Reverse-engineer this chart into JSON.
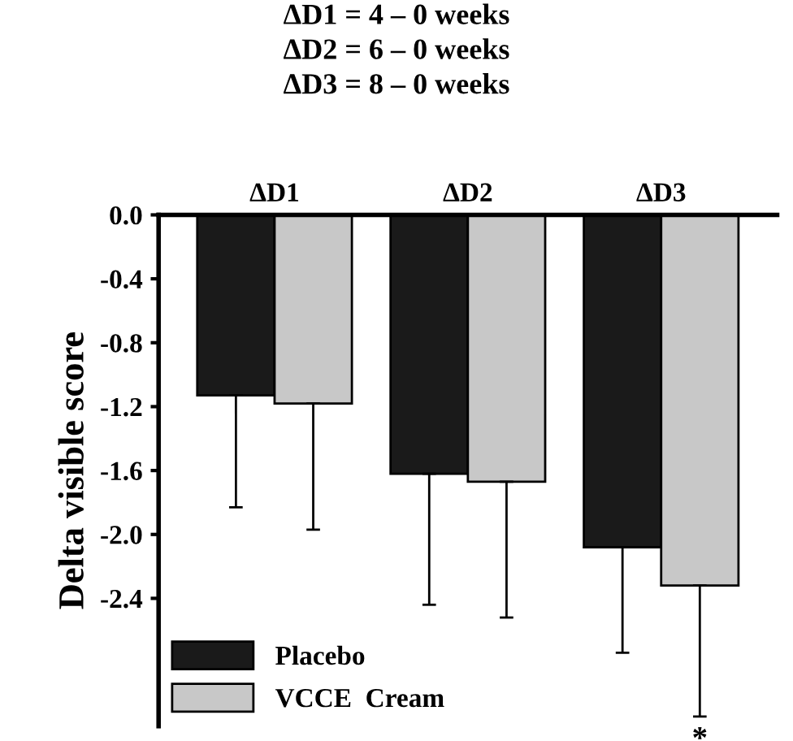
{
  "chart_data": {
    "type": "bar",
    "title": "ΔD1 = 4 – 0 weeks\nΔD2 = 6 – 0 weeks\nΔD3 = 8 – 0 weeks",
    "ylabel": "Delta visible score",
    "categories": [
      "ΔD1",
      "ΔD2",
      "ΔD3"
    ],
    "series": [
      {
        "name": "Placebo",
        "color": "#1a1a1a",
        "values": [
          -1.13,
          -1.62,
          -2.08
        ],
        "errors": [
          [
            -1.83,
            -1.13
          ],
          [
            -2.44,
            -1.62
          ],
          [
            -2.74,
            -2.08
          ]
        ]
      },
      {
        "name": "VCCE  Cream",
        "color": "#c8c8c8",
        "values": [
          -1.18,
          -1.67,
          -2.32
        ],
        "errors": [
          [
            -1.97,
            -1.18
          ],
          [
            -2.52,
            -1.67
          ],
          [
            -3.14,
            -2.32
          ]
        ]
      }
    ],
    "ylim": [
      -3.2,
      0
    ],
    "yticks": [
      {
        "value": 0,
        "label": "0.0"
      },
      -0.4,
      -0.8,
      -1.2,
      -1.6,
      {
        "value": -2,
        "label": "-2.0"
      },
      -2.4
    ],
    "annotations": [
      "*"
    ],
    "legend": "bottom left",
    "grid": false
  }
}
